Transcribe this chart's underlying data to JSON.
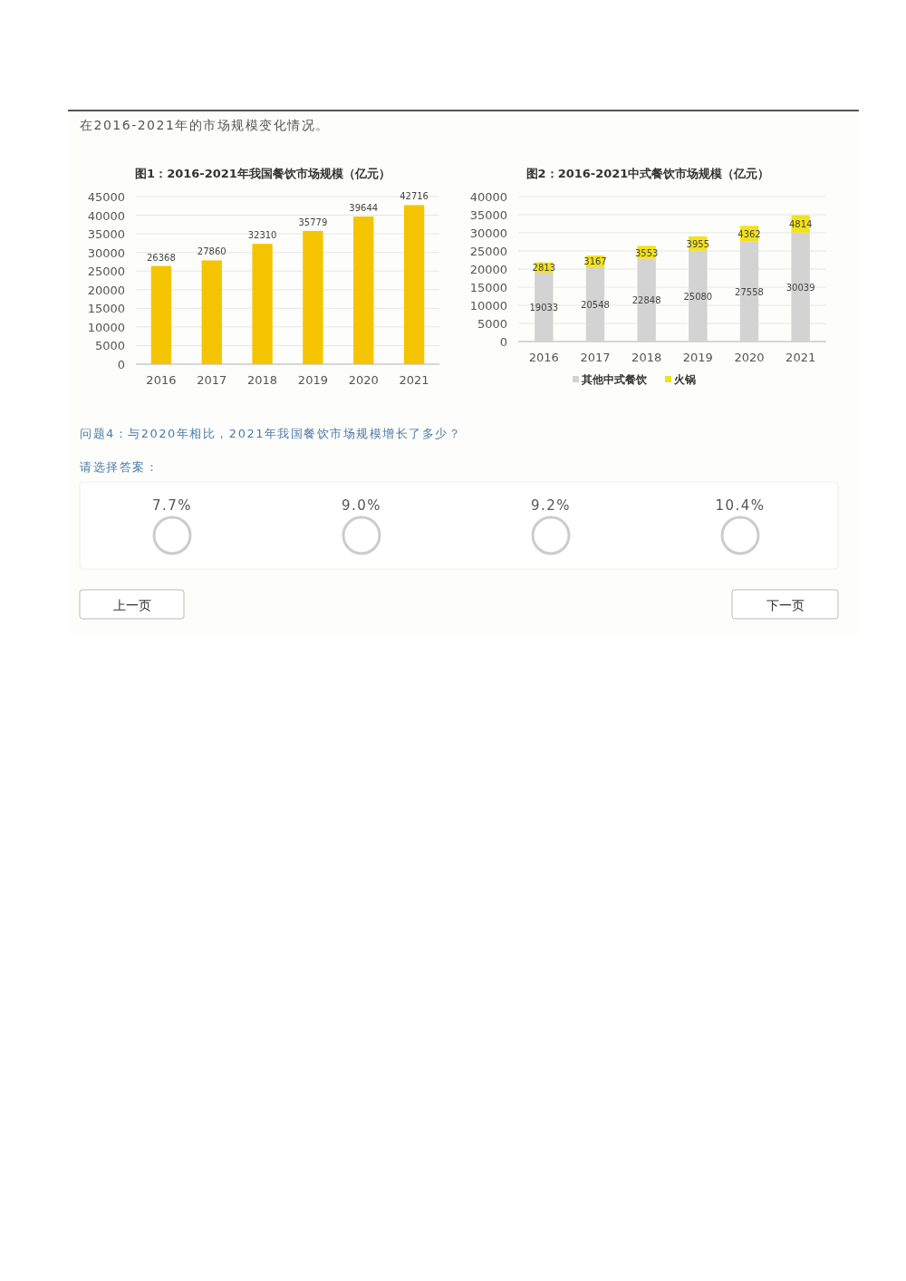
{
  "chart_data": [
    {
      "type": "other",
      "annotations": [
        "在2016-2021年的市场规模变化情况。"
      ]
    },
    {
      "type": "bar",
      "title": "图1：2016-2021年我国餐饮市场规模（亿元）",
      "categories": [
        "2016",
        "2017",
        "2018",
        "2019",
        "2020",
        "2021"
      ],
      "series": [
        {
          "color": "#f5c400",
          "values": [
            26368,
            27860,
            32310,
            35779,
            39644,
            42716
          ]
        }
      ],
      "ylim": [
        0,
        45000
      ],
      "yticks": [
        0,
        5000,
        10000,
        15000,
        20000,
        25000,
        30000,
        35000,
        40000,
        45000
      ],
      "grid": "y",
      "data_labels": true
    },
    {
      "type": "bar",
      "title": "图2：2016-2021中式餐饮市场规模（亿元）",
      "categories": [
        "2016",
        "2017",
        "2018",
        "2019",
        "2020",
        "2021"
      ],
      "stacked": true,
      "series": [
        {
          "name": "其他中式餐饮",
          "color": "#d3d3d3",
          "values": [
            19033,
            20548,
            22848,
            25080,
            27558,
            30039
          ]
        },
        {
          "name": "火锅",
          "color": "#f2e21a",
          "values": [
            2813,
            3167,
            3553,
            3955,
            4362,
            4814
          ]
        }
      ],
      "ylim": [
        0,
        40000
      ],
      "yticks": [
        0,
        5000,
        10000,
        15000,
        20000,
        25000,
        30000,
        35000,
        40000
      ],
      "grid": "y",
      "data_labels": true,
      "legend": "bottom"
    },
    {
      "type": "other",
      "annotations": [
        "问题4：与2020年相比，2021年我国餐饮市场规模增长了多少？",
        "请选择答案：",
        "7.7%",
        "9.0%",
        "9.2%",
        "10.4%",
        "上一页",
        "下一页"
      ]
    }
  ]
}
